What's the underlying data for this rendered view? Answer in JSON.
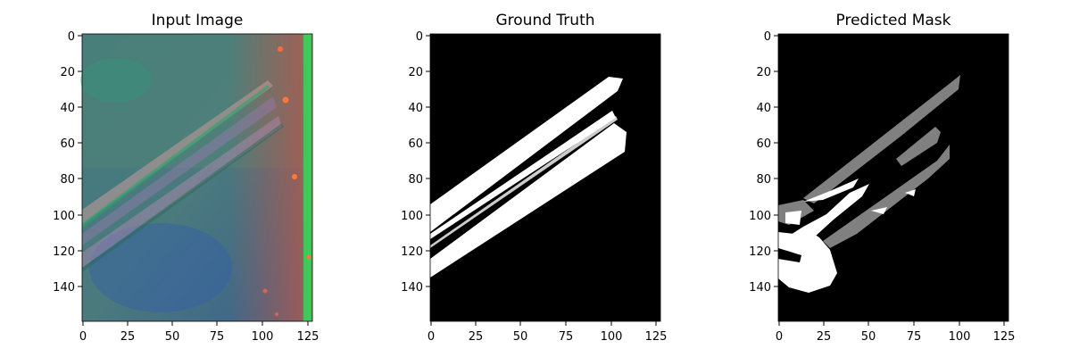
{
  "panels": [
    {
      "title": "Input Image",
      "x_ticks": [
        "0",
        "25",
        "50",
        "75",
        "100",
        "125"
      ],
      "y_ticks": [
        "0",
        "20",
        "40",
        "60",
        "80",
        "100",
        "120",
        "140"
      ]
    },
    {
      "title": "Ground Truth",
      "x_ticks": [
        "0",
        "25",
        "50",
        "75",
        "100",
        "125"
      ],
      "y_ticks": [
        "0",
        "20",
        "40",
        "60",
        "80",
        "100",
        "120",
        "140"
      ]
    },
    {
      "title": "Predicted Mask",
      "x_ticks": [
        "0",
        "25",
        "50",
        "75",
        "100",
        "125"
      ],
      "y_ticks": [
        "0",
        "20",
        "40",
        "60",
        "80",
        "100",
        "120",
        "140"
      ]
    }
  ],
  "colors": {
    "mask_background": "#000000",
    "mask_foreground": "#ffffff",
    "mask_uncertain": "#808080",
    "input_tint": "#3f7f86"
  }
}
